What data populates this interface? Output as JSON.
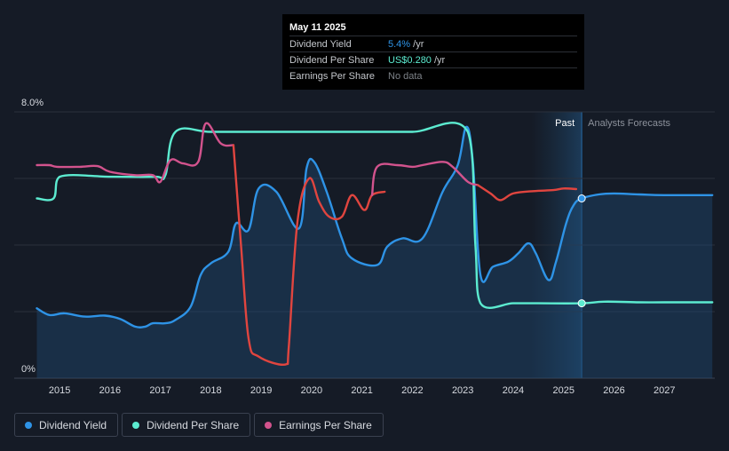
{
  "tooltip": {
    "date": "May 11 2025",
    "rows": [
      {
        "label": "Dividend Yield",
        "value": "5.4%",
        "unit": " /yr",
        "color": "#2e93e6"
      },
      {
        "label": "Dividend Per Share",
        "value": "US$0.280",
        "unit": " /yr",
        "color": "#5cebd0"
      },
      {
        "label": "Earnings Per Share",
        "value": "No data",
        "unit": "",
        "color": "#7d8288"
      }
    ]
  },
  "legend": [
    {
      "label": "Dividend Yield",
      "color": "#2e93e6"
    },
    {
      "label": "Dividend Per Share",
      "color": "#5cebd0"
    },
    {
      "label": "Earnings Per Share",
      "color": "#d2538d"
    }
  ],
  "chart_data": {
    "type": "line",
    "title": "",
    "xlabel": "",
    "ylabel": "",
    "x_range": [
      2014.1,
      2028.0
    ],
    "ylim": [
      0,
      8
    ],
    "y_ticks": [
      {
        "value": 8,
        "label": "8.0%"
      },
      {
        "value": 0,
        "label": "0%"
      }
    ],
    "x_ticks": [
      2015,
      2016,
      2017,
      2018,
      2019,
      2020,
      2021,
      2022,
      2023,
      2024,
      2025,
      2026,
      2027
    ],
    "gridlines": [
      0,
      2,
      4,
      6,
      8
    ],
    "past_label": "Past",
    "forecast_label": "Analysts Forecasts",
    "forecast_start": 2025.36,
    "forecast_band_start": 2024.36,
    "marker_x": 2025.36,
    "series": [
      {
        "name": "Dividend Yield",
        "color": "#2e93e6",
        "area": true,
        "points": [
          [
            2014.55,
            2.1
          ],
          [
            2014.8,
            1.9
          ],
          [
            2015.1,
            1.95
          ],
          [
            2015.5,
            1.85
          ],
          [
            2015.9,
            1.88
          ],
          [
            2016.2,
            1.78
          ],
          [
            2016.5,
            1.55
          ],
          [
            2016.7,
            1.55
          ],
          [
            2016.85,
            1.65
          ],
          [
            2017.1,
            1.65
          ],
          [
            2017.3,
            1.75
          ],
          [
            2017.6,
            2.15
          ],
          [
            2017.8,
            3.1
          ],
          [
            2018.0,
            3.45
          ],
          [
            2018.35,
            3.8
          ],
          [
            2018.5,
            4.65
          ],
          [
            2018.75,
            4.45
          ],
          [
            2018.95,
            5.7
          ],
          [
            2019.3,
            5.6
          ],
          [
            2019.75,
            4.5
          ],
          [
            2019.9,
            6.3
          ],
          [
            2020.05,
            6.5
          ],
          [
            2020.3,
            5.6
          ],
          [
            2020.6,
            4.2
          ],
          [
            2020.8,
            3.6
          ],
          [
            2021.3,
            3.4
          ],
          [
            2021.5,
            3.95
          ],
          [
            2021.8,
            4.2
          ],
          [
            2022.2,
            4.2
          ],
          [
            2022.6,
            5.6
          ],
          [
            2022.9,
            6.4
          ],
          [
            2023.07,
            7.55
          ],
          [
            2023.2,
            6.5
          ],
          [
            2023.35,
            3.1
          ],
          [
            2023.6,
            3.35
          ],
          [
            2023.9,
            3.5
          ],
          [
            2024.1,
            3.75
          ],
          [
            2024.3,
            4.05
          ],
          [
            2024.45,
            3.75
          ],
          [
            2024.7,
            2.95
          ],
          [
            2024.85,
            3.5
          ],
          [
            2025.05,
            4.65
          ],
          [
            2025.2,
            5.2
          ],
          [
            2025.36,
            5.4
          ],
          [
            2025.7,
            5.52
          ],
          [
            2026.0,
            5.55
          ],
          [
            2026.5,
            5.52
          ],
          [
            2027.0,
            5.5
          ],
          [
            2027.95,
            5.5
          ]
        ]
      },
      {
        "name": "Dividend Per Share",
        "color": "#5cebd0",
        "area": false,
        "points": [
          [
            2014.55,
            5.4
          ],
          [
            2014.88,
            5.4
          ],
          [
            2015.0,
            6.05
          ],
          [
            2016.0,
            6.05
          ],
          [
            2016.9,
            6.05
          ],
          [
            2017.1,
            6.1
          ],
          [
            2017.3,
            7.4
          ],
          [
            2018.0,
            7.4
          ],
          [
            2019.0,
            7.4
          ],
          [
            2020.0,
            7.4
          ],
          [
            2021.0,
            7.4
          ],
          [
            2022.0,
            7.4
          ],
          [
            2023.1,
            7.4
          ],
          [
            2023.25,
            4.0
          ],
          [
            2023.35,
            2.25
          ],
          [
            2024.0,
            2.25
          ],
          [
            2024.5,
            2.25
          ],
          [
            2025.36,
            2.25
          ],
          [
            2025.8,
            2.3
          ],
          [
            2026.5,
            2.28
          ],
          [
            2027.0,
            2.28
          ],
          [
            2027.95,
            2.28
          ]
        ]
      },
      {
        "name": "Earnings Per Share",
        "color": "#d2538d",
        "area": false,
        "points": [
          [
            2014.55,
            6.4
          ],
          [
            2014.8,
            6.4
          ],
          [
            2014.95,
            6.35
          ],
          [
            2015.4,
            6.35
          ],
          [
            2015.75,
            6.37
          ],
          [
            2016.0,
            6.2
          ],
          [
            2016.5,
            6.1
          ],
          [
            2016.85,
            6.1
          ],
          [
            2017.0,
            5.9
          ],
          [
            2017.2,
            6.55
          ],
          [
            2017.45,
            6.45
          ],
          [
            2017.75,
            6.5
          ],
          [
            2017.9,
            7.65
          ],
          [
            2018.2,
            7.05
          ],
          [
            2018.45,
            7.0
          ]
        ]
      },
      {
        "name": "Earnings Per Share",
        "color": "#e0453f",
        "area": false,
        "points": [
          [
            2018.45,
            7.0
          ],
          [
            2018.6,
            4.0
          ],
          [
            2018.75,
            1.2
          ],
          [
            2018.95,
            0.65
          ],
          [
            2019.5,
            0.42
          ],
          [
            2019.55,
            1.0
          ],
          [
            2019.72,
            4.7
          ],
          [
            2019.95,
            6.0
          ],
          [
            2020.15,
            5.3
          ],
          [
            2020.35,
            4.85
          ],
          [
            2020.6,
            4.85
          ],
          [
            2020.8,
            5.5
          ],
          [
            2021.05,
            5.05
          ],
          [
            2021.2,
            5.5
          ],
          [
            2021.45,
            5.6
          ]
        ]
      },
      {
        "name": "Earnings Per Share",
        "color": "#d2538d",
        "area": false,
        "points": [
          [
            2021.2,
            5.5
          ],
          [
            2021.3,
            6.35
          ],
          [
            2021.7,
            6.4
          ],
          [
            2022.0,
            6.35
          ],
          [
            2022.2,
            6.4
          ],
          [
            2022.6,
            6.5
          ],
          [
            2022.8,
            6.35
          ],
          [
            2023.1,
            5.9
          ],
          [
            2023.3,
            5.8
          ]
        ]
      },
      {
        "name": "Earnings Per Share",
        "color": "#e0453f",
        "area": false,
        "points": [
          [
            2023.3,
            5.8
          ],
          [
            2023.55,
            5.55
          ],
          [
            2023.75,
            5.35
          ],
          [
            2024.0,
            5.55
          ],
          [
            2024.4,
            5.62
          ],
          [
            2024.8,
            5.65
          ],
          [
            2025.0,
            5.7
          ],
          [
            2025.25,
            5.68
          ]
        ]
      }
    ]
  }
}
